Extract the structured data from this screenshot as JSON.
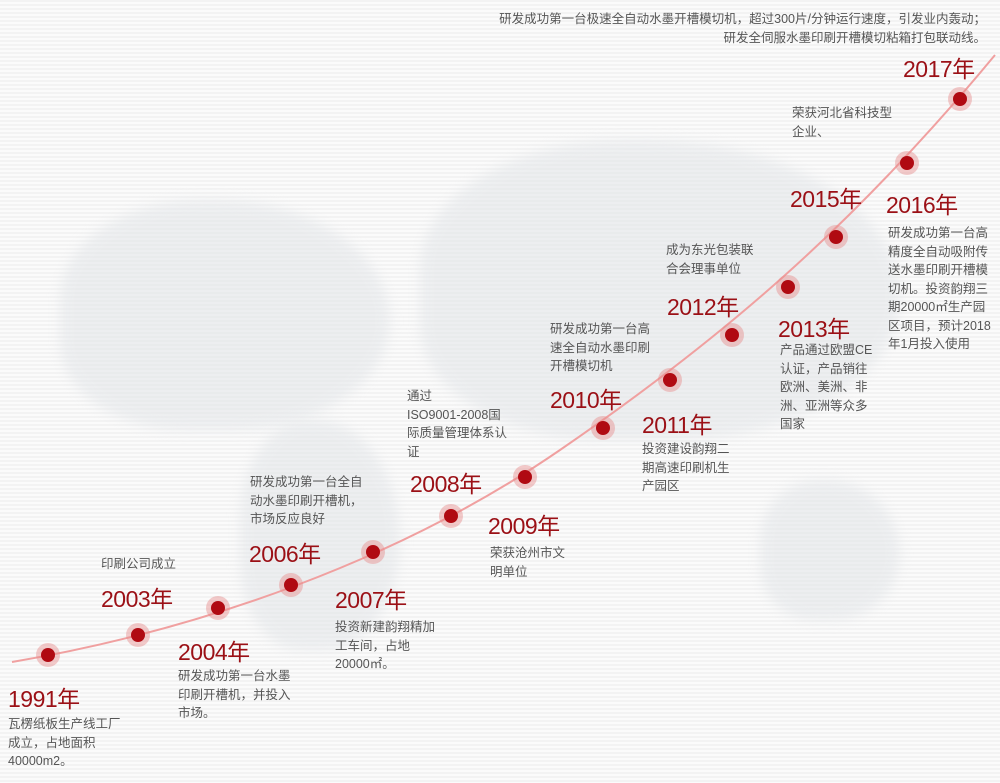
{
  "colors": {
    "accent": "#9b1016",
    "dot": "#b00a12",
    "line": "#f0a0a0",
    "text": "#555555"
  },
  "events": [
    {
      "year": "1991年",
      "lines": [
        "瓦楞纸板生产线工厂",
        "成立，占地面积",
        "40000m2。"
      ]
    },
    {
      "year": "2003年",
      "lines": [
        "印刷公司成立"
      ]
    },
    {
      "year": "2004年",
      "lines": [
        "研发成功第一台水墨",
        "印刷开槽机，并投入",
        "市场。"
      ]
    },
    {
      "year": "2006年",
      "lines": [
        "研发成功第一台全自",
        "动水墨印刷开槽机，",
        "市场反应良好"
      ]
    },
    {
      "year": "2007年",
      "lines": [
        "投资新建韵翔精加",
        "工车间，占地",
        "20000㎡。"
      ]
    },
    {
      "year": "2008年",
      "lines": [
        "通过",
        "ISO9001-2008国",
        "际质量管理体系认",
        "证"
      ]
    },
    {
      "year": "2009年",
      "lines": [
        "荣获沧州市文",
        "明单位"
      ]
    },
    {
      "year": "2010年",
      "lines": [
        "研发成功第一台高",
        "速全自动水墨印刷",
        "开槽模切机"
      ]
    },
    {
      "year": "2011年",
      "lines": [
        "投资建设韵翔二",
        "期高速印刷机生",
        "产园区"
      ]
    },
    {
      "year": "2012年",
      "lines": [
        "成为东光包装联",
        "合会理事单位"
      ]
    },
    {
      "year": "2013年",
      "lines": [
        "产品通过欧盟CE",
        "认证，产品销往",
        "欧洲、美洲、非",
        "洲、亚洲等众多",
        "国家"
      ]
    },
    {
      "year": "2015年",
      "lines": [
        "荣获河北省科技型",
        "企业、"
      ]
    },
    {
      "year": "2016年",
      "lines": [
        "研发成功第一台高",
        "精度全自动吸附传",
        "送水墨印刷开槽模",
        "切机。投资韵翔三",
        "期20000㎡生产园",
        "区项目，预计2018",
        "年1月投入使用"
      ]
    },
    {
      "year": "2017年",
      "lines": [
        "研发成功第一台极速全自动水墨开槽模切机，超过300片/分钟运行速度，引发业内轰动；",
        "研发全伺服水墨印刷开槽模切粘箱打包联动线。"
      ]
    }
  ]
}
